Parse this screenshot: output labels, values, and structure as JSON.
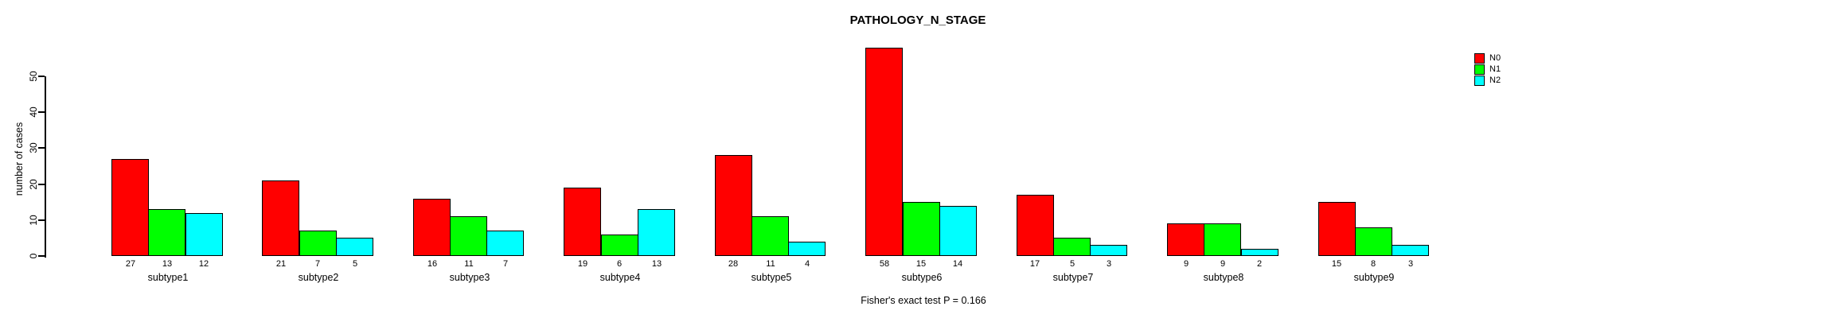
{
  "page": {
    "background": "#ffffff",
    "text_color": "#000000",
    "axis_color": "#000000"
  },
  "chart_data": {
    "type": "bar",
    "title": "PATHOLOGY_N_STAGE",
    "ylabel": "number of cases",
    "xlabel": "",
    "footer": "Fisher's exact test P = 0.166",
    "categories": [
      "subtype1",
      "subtype2",
      "subtype3",
      "subtype4",
      "subtype5",
      "subtype6",
      "subtype7",
      "subtype8",
      "subtype9"
    ],
    "series": [
      {
        "name": "N0",
        "color": "#FF0000",
        "values": [
          27,
          21,
          16,
          19,
          28,
          58,
          17,
          9,
          15
        ]
      },
      {
        "name": "N1",
        "color": "#00FF00",
        "values": [
          13,
          7,
          11,
          6,
          11,
          15,
          5,
          9,
          8
        ]
      },
      {
        "name": "N2",
        "color": "#00FFFF",
        "values": [
          12,
          5,
          7,
          13,
          4,
          14,
          3,
          2,
          3
        ]
      }
    ],
    "bar_value_labels_shown": true,
    "yticks": [
      0,
      10,
      20,
      30,
      40,
      50
    ],
    "ylim": [
      0,
      60
    ],
    "grid": false,
    "legend_position": "top-right",
    "bar_style": "grouped"
  }
}
